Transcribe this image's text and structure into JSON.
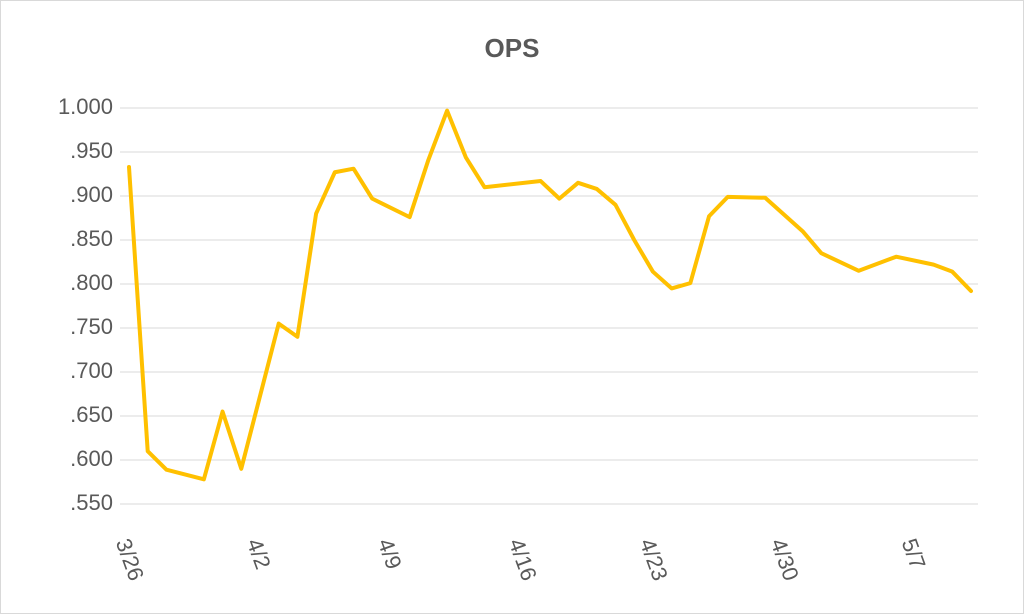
{
  "chart_data": {
    "type": "line",
    "title": "OPS",
    "categories": [
      "3/26",
      null,
      null,
      null,
      null,
      null,
      null,
      "4/2",
      null,
      null,
      null,
      null,
      null,
      null,
      "4/9",
      null,
      null,
      null,
      null,
      null,
      null,
      "4/16",
      null,
      null,
      null,
      null,
      null,
      null,
      "4/23",
      null,
      null,
      null,
      null,
      null,
      null,
      "4/30",
      null,
      null,
      null,
      null,
      null,
      null,
      "5/7",
      null,
      null,
      null
    ],
    "series": [
      {
        "name": "OPS",
        "color": "#ffc000",
        "values": [
          0.933,
          0.61,
          0.589,
          null,
          0.578,
          0.655,
          0.59,
          null,
          0.755,
          0.74,
          0.88,
          0.927,
          0.931,
          0.897,
          null,
          0.876,
          0.941,
          0.997,
          0.944,
          0.91,
          null,
          null,
          0.917,
          0.897,
          0.915,
          0.908,
          0.89,
          0.85,
          0.814,
          0.795,
          0.801,
          0.877,
          0.899,
          null,
          0.898,
          0.879,
          0.86,
          0.835,
          null,
          0.815,
          null,
          0.831,
          null,
          0.822,
          0.814,
          0.792
        ]
      }
    ],
    "connect_gaps": true,
    "ylim": [
      0.55,
      1.0
    ],
    "yticks": [
      {
        "value": 0.55,
        "label": ".550"
      },
      {
        "value": 0.6,
        "label": ".600"
      },
      {
        "value": 0.65,
        "label": ".650"
      },
      {
        "value": 0.7,
        "label": ".700"
      },
      {
        "value": 0.75,
        "label": ".750"
      },
      {
        "value": 0.8,
        "label": ".800"
      },
      {
        "value": 0.85,
        "label": ".850"
      },
      {
        "value": 0.9,
        "label": ".900"
      },
      {
        "value": 0.95,
        "label": ".950"
      },
      {
        "value": 1.0,
        "label": "1.000"
      }
    ],
    "grid": true
  }
}
